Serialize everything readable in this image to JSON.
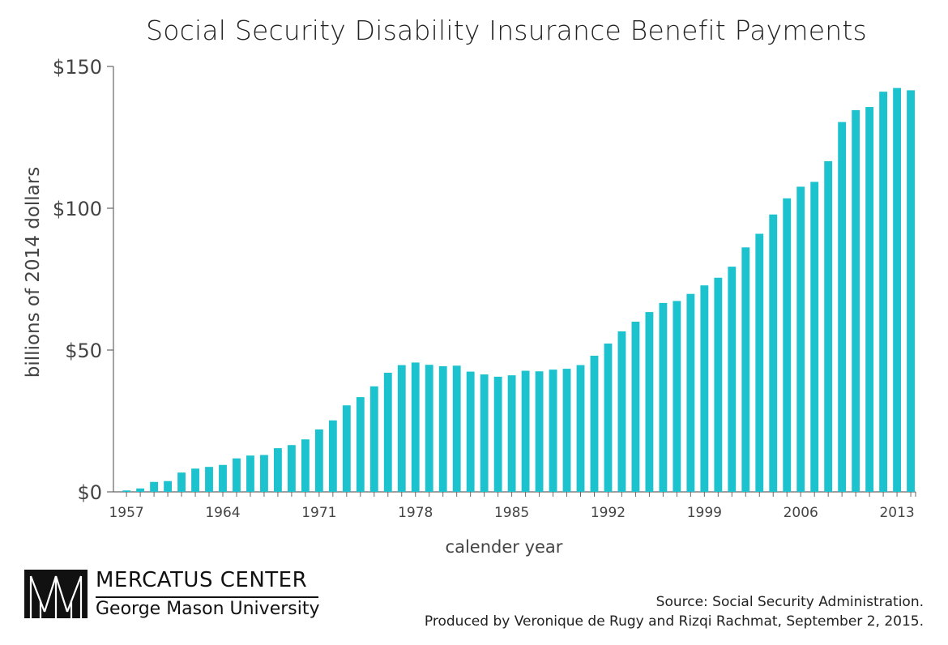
{
  "chart_data": {
    "type": "bar",
    "title": "Social Security Disability Insurance Benefit Payments",
    "xlabel": "calender year",
    "ylabel": "billions of 2014 dollars",
    "ylim": [
      0,
      150
    ],
    "y_ticks": [
      {
        "value": 0,
        "label": "$0"
      },
      {
        "value": 50,
        "label": "$50"
      },
      {
        "value": 100,
        "label": "$100"
      },
      {
        "value": 150,
        "label": "$150"
      }
    ],
    "x_tick_labels": [
      "1957",
      "1964",
      "1971",
      "1978",
      "1985",
      "1992",
      "1999",
      "2006",
      "2013"
    ],
    "bar_color": "#1cc3cf",
    "grid": false,
    "legend": "none",
    "categories": [
      1957,
      1958,
      1959,
      1960,
      1961,
      1962,
      1963,
      1964,
      1965,
      1966,
      1967,
      1968,
      1969,
      1970,
      1971,
      1972,
      1973,
      1974,
      1975,
      1976,
      1977,
      1978,
      1979,
      1980,
      1981,
      1982,
      1983,
      1984,
      1985,
      1986,
      1987,
      1988,
      1989,
      1990,
      1991,
      1992,
      1993,
      1994,
      1995,
      1996,
      1997,
      1998,
      1999,
      2000,
      2001,
      2002,
      2003,
      2004,
      2005,
      2006,
      2007,
      2008,
      2009,
      2010,
      2011,
      2012,
      2013,
      2014
    ],
    "values": [
      0.5,
      1.2,
      3.5,
      3.8,
      6.8,
      8.2,
      8.8,
      9.5,
      11.8,
      12.8,
      13.0,
      15.4,
      16.5,
      18.5,
      22.0,
      25.2,
      30.5,
      33.4,
      37.2,
      42.0,
      44.7,
      45.6,
      44.8,
      44.3,
      44.5,
      42.4,
      41.4,
      40.6,
      41.1,
      42.7,
      42.5,
      43.1,
      43.4,
      44.7,
      48.0,
      52.3,
      56.6,
      60.0,
      63.4,
      66.6,
      67.3,
      69.8,
      72.8,
      75.5,
      79.4,
      86.2,
      91.0,
      97.8,
      103.5,
      107.6,
      109.3,
      116.6,
      130.4,
      134.6,
      135.7,
      141.1,
      142.4,
      141.6
    ]
  },
  "source": {
    "line1": "Source: Social Security Administration.",
    "line2": "Produced by Veronique de Rugy and Rizqi Rachmat, September 2, 2015."
  },
  "logo": {
    "name": "MERCATUS CENTER",
    "subtitle": "George Mason University"
  }
}
